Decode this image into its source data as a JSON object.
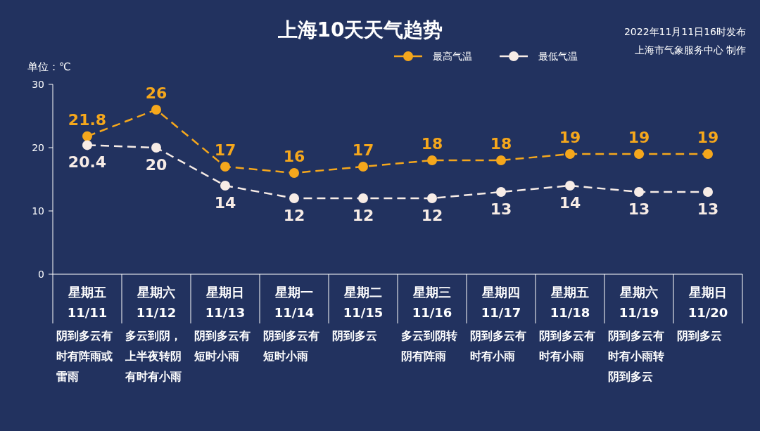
{
  "chart_data": {
    "type": "line",
    "title": "上海10天天气趋势",
    "ylabel": "单位：℃",
    "categories": [
      "星期五\n11/11",
      "星期六\n11/12",
      "星期日\n11/13",
      "星期一\n11/14",
      "星期二\n11/15",
      "星期三\n11/16",
      "星期四\n11/17",
      "星期五\n11/18",
      "星期六\n11/19",
      "星期日\n11/20"
    ],
    "series": [
      {
        "name": "最高气温",
        "color": "#f5a71c",
        "values": [
          21.8,
          26,
          17,
          16,
          17,
          18,
          18,
          19,
          19,
          19
        ]
      },
      {
        "name": "最低气温",
        "color": "#f7ece6",
        "values": [
          20.4,
          20,
          14,
          12,
          12,
          12,
          13,
          14,
          13,
          13
        ]
      }
    ],
    "ylim": [
      0,
      30
    ],
    "yticks": [
      0,
      10,
      20,
      30
    ],
    "grid": false,
    "legend": "top",
    "marker": "circle",
    "line_style": "dashed",
    "data_labels": true,
    "annotations": [
      "阴到多云有时有阵雨或雷雨",
      "多云到阴，上半夜转阴有时有小雨",
      "阴到多云有短时小雨",
      "阴到多云有短时小雨",
      "阴到多云",
      "多云到阴转阴有阵雨",
      "阴到多云有时有小雨",
      "阴到多云有时有小雨",
      "阴到多云有时有小雨转阴到多云",
      "阴到多云",
      "2022年11月11日16时发布",
      "上海市气象服务中心 制作"
    ]
  }
}
